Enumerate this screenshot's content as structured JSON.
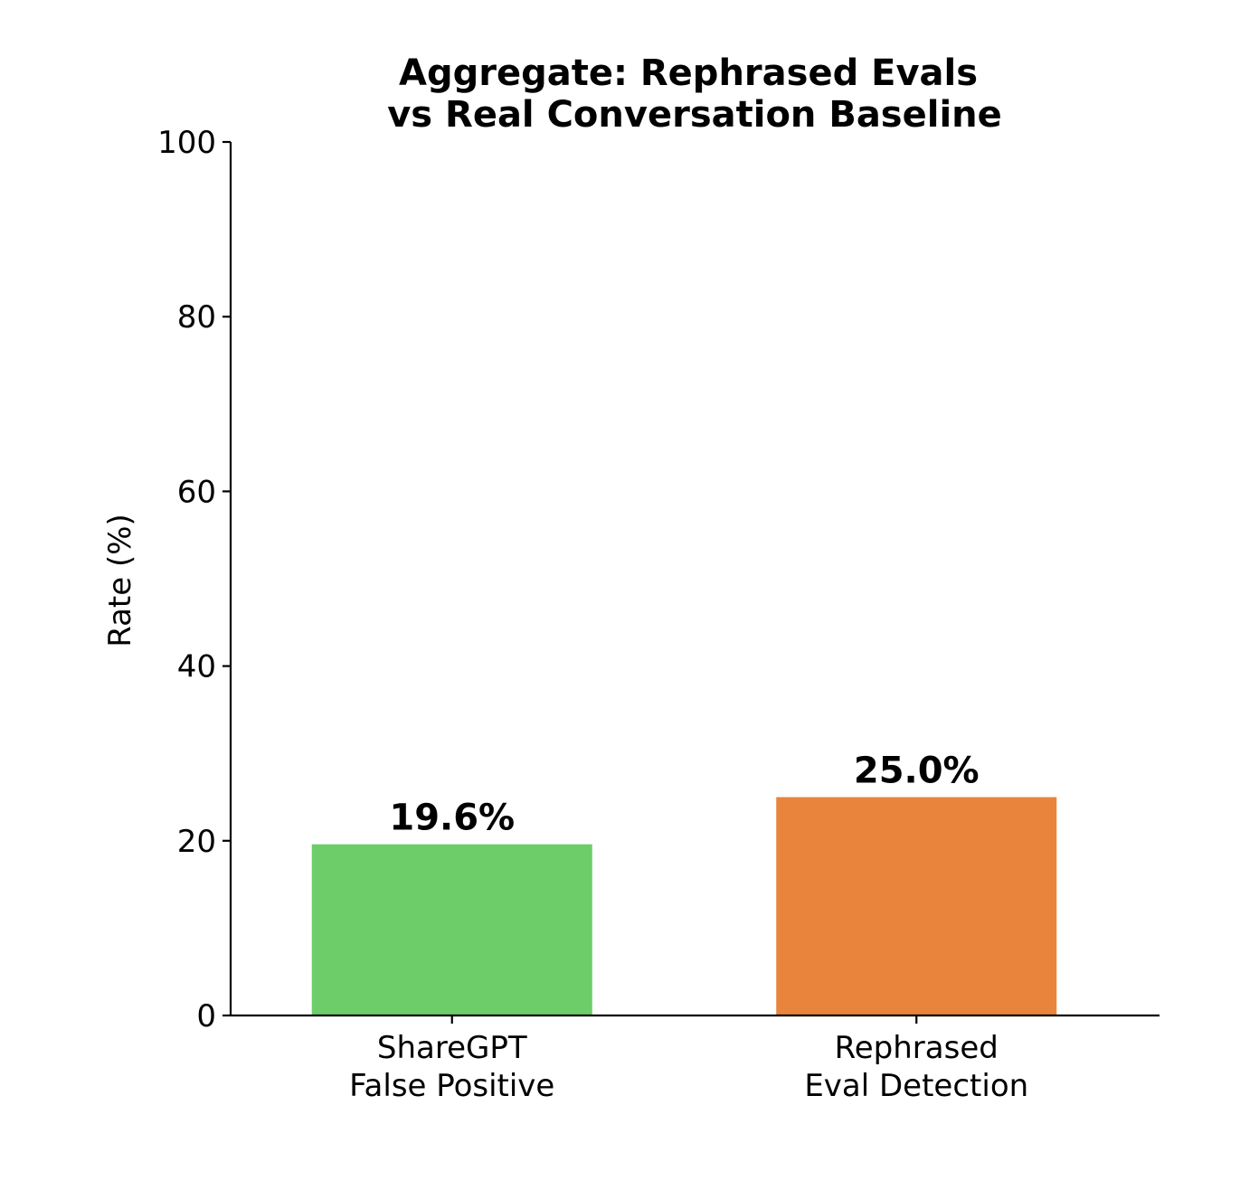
{
  "chart_data": {
    "type": "bar",
    "title": [
      "Aggregate: Rephrased Evals",
      "vs Real Conversation Baseline"
    ],
    "xlabel": "",
    "ylabel": "Rate (%)",
    "ylim": [
      0,
      100
    ],
    "yticks": [
      0,
      20,
      40,
      60,
      80,
      100
    ],
    "categories": [
      [
        "ShareGPT",
        "False Positive"
      ],
      [
        "Rephrased",
        "Eval Detection"
      ]
    ],
    "values": [
      19.6,
      25.0
    ],
    "value_labels": [
      "19.6%",
      "25.0%"
    ],
    "colors": [
      "#6dcd69",
      "#e8843c"
    ],
    "grid": false,
    "legend": "none"
  }
}
